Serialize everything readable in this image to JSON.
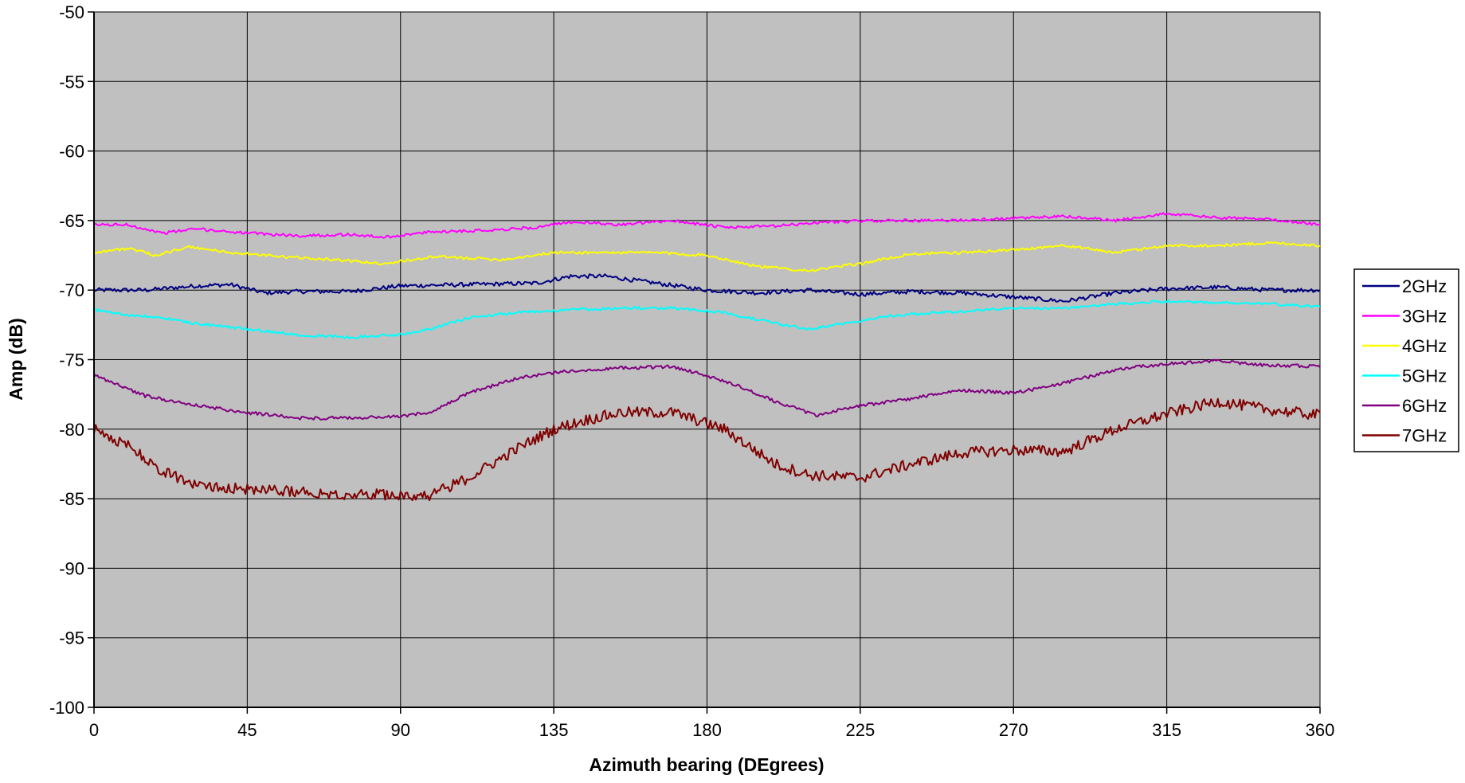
{
  "chart_data": {
    "type": "line",
    "title": "",
    "xlabel": "Azimuth bearing (DEgrees)",
    "ylabel": "Amp (dB)",
    "xlim": [
      0,
      360
    ],
    "ylim": [
      -100,
      -50
    ],
    "xticks": [
      0,
      45,
      90,
      135,
      180,
      225,
      270,
      315,
      360
    ],
    "yticks": [
      -50,
      -55,
      -60,
      -65,
      -70,
      -75,
      -80,
      -85,
      -90,
      -95,
      -100
    ],
    "grid": true,
    "plot_background": "#C0C0C0",
    "legend_position": "right",
    "series": [
      {
        "name": "2GHz",
        "color": "#000080",
        "noise": 0.15,
        "x": [
          0,
          15,
          30,
          40,
          50,
          60,
          75,
          90,
          110,
          130,
          140,
          150,
          165,
          180,
          195,
          210,
          225,
          240,
          255,
          270,
          285,
          300,
          315,
          330,
          345,
          360
        ],
        "y": [
          -70,
          -70,
          -69.7,
          -69.6,
          -70.2,
          -70.1,
          -70.1,
          -69.7,
          -69.6,
          -69.5,
          -69,
          -69,
          -69.5,
          -70,
          -70.2,
          -70,
          -70.3,
          -70.1,
          -70.2,
          -70.5,
          -70.8,
          -70.2,
          -69.9,
          -69.8,
          -70,
          -70
        ]
      },
      {
        "name": "3GHz",
        "color": "#FF00FF",
        "noise": 0.1,
        "x": [
          0,
          10,
          20,
          30,
          45,
          60,
          75,
          85,
          100,
          115,
          130,
          140,
          155,
          170,
          185,
          200,
          215,
          230,
          250,
          265,
          285,
          300,
          315,
          330,
          345,
          360
        ],
        "y": [
          -65.3,
          -65.3,
          -65.9,
          -65.6,
          -65.9,
          -66.1,
          -66,
          -66.2,
          -65.8,
          -65.7,
          -65.5,
          -65.1,
          -65.3,
          -65,
          -65.5,
          -65.4,
          -65.1,
          -65,
          -65,
          -64.9,
          -64.7,
          -65,
          -64.5,
          -64.8,
          -64.9,
          -65.3
        ]
      },
      {
        "name": "4GHz",
        "color": "#FFFF00",
        "noise": 0.1,
        "x": [
          0,
          10,
          18,
          28,
          40,
          55,
          70,
          85,
          100,
          120,
          135,
          150,
          165,
          180,
          195,
          210,
          225,
          240,
          255,
          270,
          285,
          300,
          315,
          330,
          345,
          360
        ],
        "y": [
          -67.3,
          -67,
          -67.5,
          -66.9,
          -67.3,
          -67.6,
          -67.8,
          -68.1,
          -67.6,
          -67.8,
          -67.3,
          -67.3,
          -67.3,
          -67.5,
          -68.3,
          -68.6,
          -68.1,
          -67.4,
          -67.3,
          -67.1,
          -66.8,
          -67.3,
          -66.8,
          -66.8,
          -66.6,
          -66.8
        ]
      },
      {
        "name": "5GHz",
        "color": "#00FFFF",
        "noise": 0.1,
        "x": [
          0,
          10,
          20,
          30,
          45,
          60,
          75,
          90,
          100,
          110,
          125,
          140,
          155,
          170,
          185,
          200,
          210,
          220,
          235,
          250,
          270,
          285,
          300,
          315,
          330,
          345,
          360
        ],
        "y": [
          -71.4,
          -71.8,
          -72,
          -72.4,
          -72.8,
          -73.2,
          -73.4,
          -73.2,
          -72.7,
          -72,
          -71.6,
          -71.4,
          -71.3,
          -71.3,
          -71.6,
          -72.4,
          -72.8,
          -72.4,
          -71.8,
          -71.6,
          -71.3,
          -71.3,
          -71,
          -70.8,
          -70.9,
          -71,
          -71.2
        ]
      },
      {
        "name": "6GHz",
        "color": "#800080",
        "noise": 0.12,
        "x": [
          0,
          15,
          30,
          45,
          60,
          75,
          90,
          100,
          110,
          125,
          140,
          155,
          170,
          185,
          200,
          212,
          225,
          240,
          255,
          270,
          285,
          300,
          315,
          330,
          345,
          360
        ],
        "y": [
          -76.1,
          -77.6,
          -78.3,
          -78.8,
          -79.2,
          -79.2,
          -79.1,
          -78.7,
          -77.4,
          -76.3,
          -75.8,
          -75.6,
          -75.5,
          -76.5,
          -78,
          -79,
          -78.3,
          -77.8,
          -77.2,
          -77.4,
          -76.7,
          -75.7,
          -75.3,
          -75.1,
          -75.4,
          -75.5
        ]
      },
      {
        "name": "7GHz",
        "color": "#800000",
        "noise": 0.4,
        "x": [
          0,
          10,
          20,
          30,
          45,
          60,
          75,
          90,
          98,
          110,
          125,
          135,
          145,
          155,
          170,
          185,
          200,
          210,
          225,
          240,
          255,
          270,
          285,
          300,
          315,
          330,
          345,
          360
        ],
        "y": [
          -80,
          -81.2,
          -83,
          -84,
          -84.3,
          -84.5,
          -84.7,
          -84.7,
          -84.8,
          -83.5,
          -81.3,
          -80,
          -79.3,
          -78.8,
          -78.8,
          -80,
          -82.5,
          -83.3,
          -83.5,
          -82.5,
          -81.7,
          -81.5,
          -81.6,
          -80,
          -78.9,
          -78,
          -78.6,
          -79
        ]
      }
    ]
  }
}
